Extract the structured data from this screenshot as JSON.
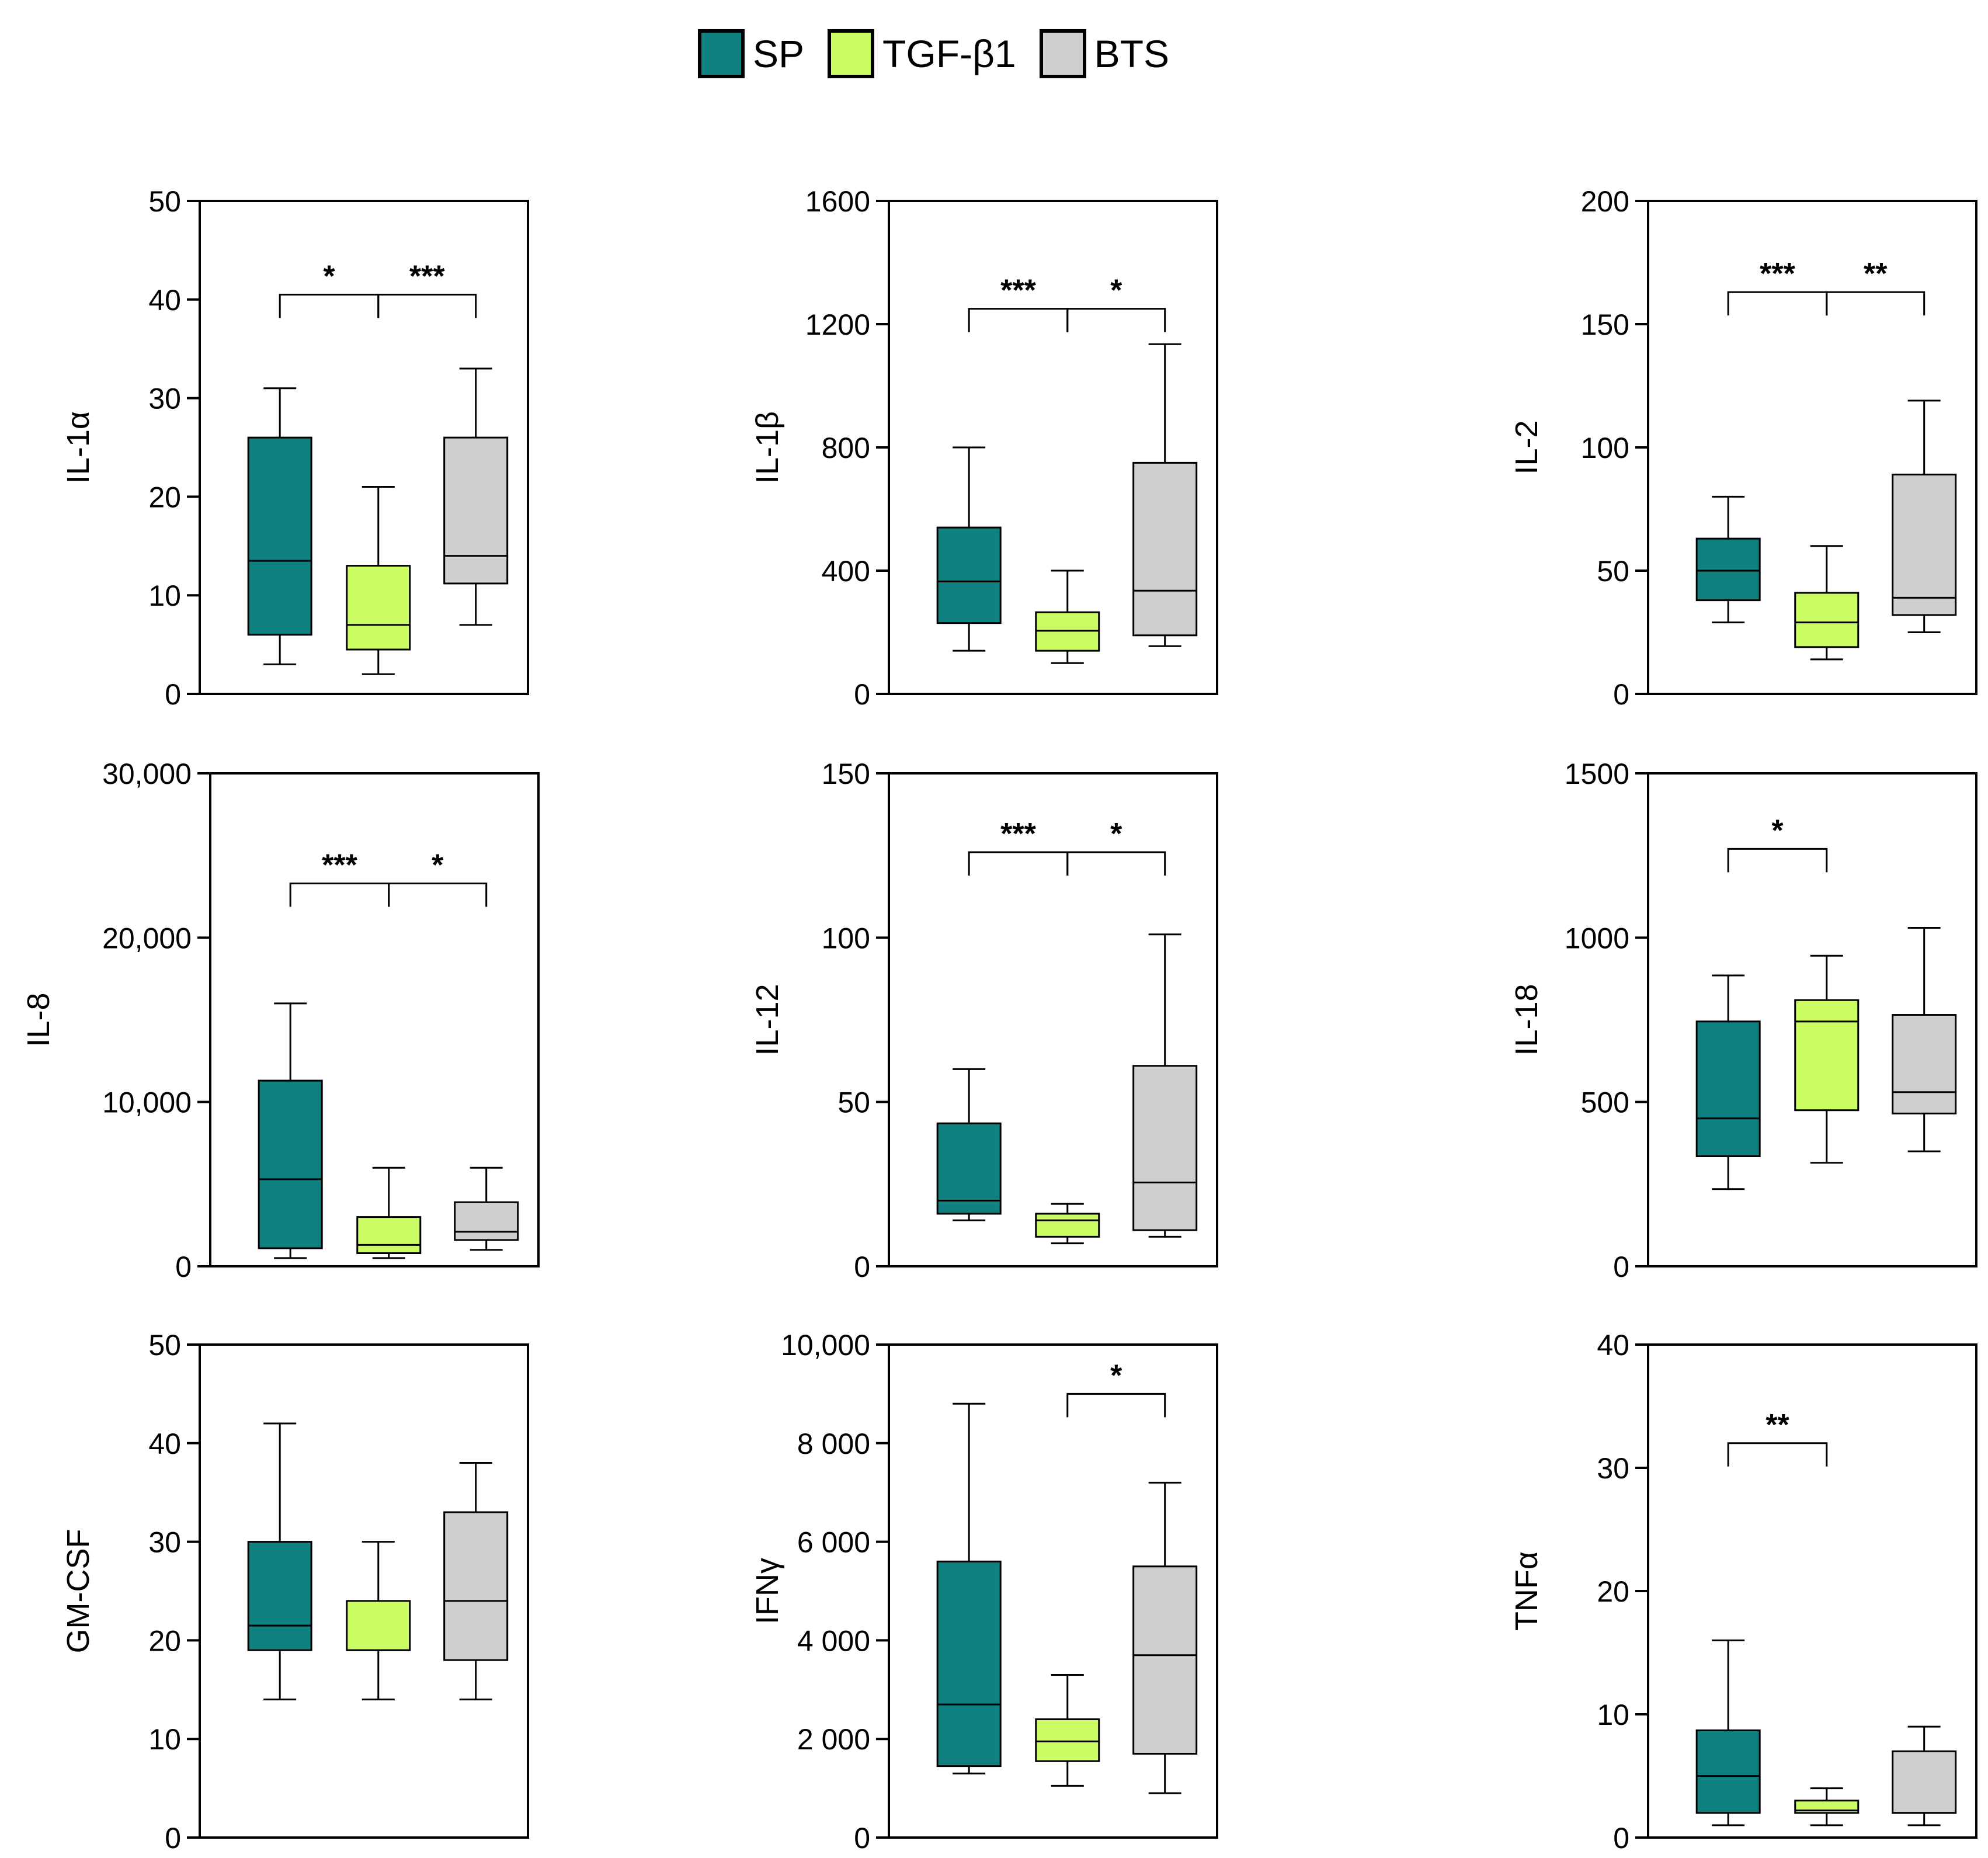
{
  "legend": [
    {
      "label": "SP",
      "color": "#118080"
    },
    {
      "label": "TGF-β1",
      "color": "#ccfc63"
    },
    {
      "label": "BTS",
      "color": "#cfcfcf"
    }
  ],
  "chart_data": [
    {
      "type": "box",
      "ylabel": "IL-1α",
      "ylim": [
        0,
        50
      ],
      "ticks": [
        "0",
        "10",
        "20",
        "30",
        "40",
        "50"
      ],
      "tick_values": [
        0,
        10,
        20,
        30,
        40,
        50
      ],
      "series": [
        {
          "name": "SP",
          "min": 3,
          "q1": 6,
          "median": 13.5,
          "q3": 26,
          "max": 31
        },
        {
          "name": "TGF-β1",
          "min": 2,
          "q1": 4.5,
          "median": 7,
          "q3": 13,
          "max": 21
        },
        {
          "name": "BTS",
          "min": 7,
          "q1": 11.2,
          "median": 14,
          "q3": 26,
          "max": 33
        }
      ],
      "significance": [
        {
          "from": 0,
          "to": 1,
          "label": "*",
          "y": 40.5
        },
        {
          "from": 1,
          "to": 2,
          "label": "***",
          "y": 40.5
        }
      ]
    },
    {
      "type": "box",
      "ylabel": "IL-1β",
      "ylim": [
        0,
        1600
      ],
      "ticks": [
        "0",
        "400",
        "800",
        "1200",
        "1600"
      ],
      "tick_values": [
        0,
        400,
        800,
        1200,
        1600
      ],
      "series": [
        {
          "name": "SP",
          "min": 140,
          "q1": 230,
          "median": 365,
          "q3": 540,
          "max": 800
        },
        {
          "name": "TGF-β1",
          "min": 100,
          "q1": 140,
          "median": 205,
          "q3": 265,
          "max": 400
        },
        {
          "name": "BTS",
          "min": 155,
          "q1": 190,
          "median": 335,
          "q3": 750,
          "max": 1135
        }
      ],
      "significance": [
        {
          "from": 0,
          "to": 1,
          "label": "***",
          "y": 1250
        },
        {
          "from": 1,
          "to": 2,
          "label": "*",
          "y": 1250
        }
      ]
    },
    {
      "type": "box",
      "ylabel": "IL-2",
      "ylim": [
        0,
        200
      ],
      "ticks": [
        "0",
        "50",
        "100",
        "150",
        "200"
      ],
      "tick_values": [
        0,
        50,
        100,
        150,
        200
      ],
      "series": [
        {
          "name": "SP",
          "min": 29,
          "q1": 38,
          "median": 50,
          "q3": 63,
          "max": 80
        },
        {
          "name": "TGF-β1",
          "min": 14,
          "q1": 19,
          "median": 29,
          "q3": 41,
          "max": 60
        },
        {
          "name": "BTS",
          "min": 25,
          "q1": 32,
          "median": 39,
          "q3": 89,
          "max": 119
        }
      ],
      "significance": [
        {
          "from": 0,
          "to": 1,
          "label": "***",
          "y": 163
        },
        {
          "from": 1,
          "to": 2,
          "label": "**",
          "y": 163
        }
      ]
    },
    {
      "type": "box",
      "ylabel": "IL-8",
      "ylim": [
        0,
        30000
      ],
      "ticks": [
        "0",
        "10,000",
        "20,000",
        "30,000"
      ],
      "tick_values": [
        0,
        10000,
        20000,
        30000
      ],
      "series": [
        {
          "name": "SP",
          "min": 500,
          "q1": 1100,
          "median": 5300,
          "q3": 11300,
          "max": 16000
        },
        {
          "name": "TGF-β1",
          "min": 500,
          "q1": 800,
          "median": 1300,
          "q3": 3000,
          "max": 6000
        },
        {
          "name": "BTS",
          "min": 1000,
          "q1": 1600,
          "median": 2100,
          "q3": 3900,
          "max": 6000
        }
      ],
      "significance": [
        {
          "from": 0,
          "to": 1,
          "label": "***",
          "y": 23300
        },
        {
          "from": 1,
          "to": 2,
          "label": "*",
          "y": 23300
        }
      ]
    },
    {
      "type": "box",
      "ylabel": "IL-12",
      "ylim": [
        0,
        150
      ],
      "ticks": [
        "0",
        "50",
        "100",
        "150"
      ],
      "tick_values": [
        0,
        50,
        100,
        150
      ],
      "series": [
        {
          "name": "SP",
          "min": 14,
          "q1": 16,
          "median": 20,
          "q3": 43.5,
          "max": 60
        },
        {
          "name": "TGF-β1",
          "min": 7,
          "q1": 9,
          "median": 14,
          "q3": 16,
          "max": 19
        },
        {
          "name": "BTS",
          "min": 9,
          "q1": 11,
          "median": 25.5,
          "q3": 61,
          "max": 101
        }
      ],
      "significance": [
        {
          "from": 0,
          "to": 1,
          "label": "***",
          "y": 126
        },
        {
          "from": 1,
          "to": 2,
          "label": "*",
          "y": 126
        }
      ]
    },
    {
      "type": "box",
      "ylabel": "IL-18",
      "ylim": [
        0,
        1500
      ],
      "ticks": [
        "0",
        "500",
        "1000",
        "1500"
      ],
      "tick_values": [
        0,
        500,
        1000,
        1500
      ],
      "series": [
        {
          "name": "SP",
          "min": 235,
          "q1": 335,
          "median": 450,
          "q3": 745,
          "max": 885
        },
        {
          "name": "TGF-β1",
          "min": 315,
          "q1": 475,
          "median": 745,
          "q3": 810,
          "max": 945
        },
        {
          "name": "BTS",
          "min": 350,
          "q1": 465,
          "median": 530,
          "q3": 765,
          "max": 1030
        }
      ],
      "significance": [
        {
          "from": 0,
          "to": 1,
          "label": "*",
          "y": 1270
        }
      ]
    },
    {
      "type": "box",
      "ylabel": "GM-CSF",
      "ylim": [
        0,
        50
      ],
      "ticks": [
        "0",
        "10",
        "20",
        "30",
        "40",
        "50"
      ],
      "tick_values": [
        0,
        10,
        20,
        30,
        40,
        50
      ],
      "series": [
        {
          "name": "SP",
          "min": 14,
          "q1": 19,
          "median": 21.5,
          "q3": 30,
          "max": 42
        },
        {
          "name": "TGF-β1",
          "min": 14,
          "q1": 19,
          "median": 19,
          "q3": 24,
          "max": 30
        },
        {
          "name": "BTS",
          "min": 14,
          "q1": 18,
          "median": 24,
          "q3": 33,
          "max": 38
        }
      ],
      "significance": []
    },
    {
      "type": "box",
      "ylabel": "IFNγ",
      "ylim": [
        0,
        10000
      ],
      "ticks": [
        "0",
        "2 000",
        "4 000",
        "6 000",
        "8 000",
        "10,000"
      ],
      "tick_values": [
        0,
        2000,
        4000,
        6000,
        8000,
        10000
      ],
      "series": [
        {
          "name": "SP",
          "min": 1300,
          "q1": 1450,
          "median": 2700,
          "q3": 5600,
          "max": 8800
        },
        {
          "name": "TGF-β1",
          "min": 1050,
          "q1": 1550,
          "median": 1950,
          "q3": 2400,
          "max": 3300
        },
        {
          "name": "BTS",
          "min": 900,
          "q1": 1700,
          "median": 3700,
          "q3": 5500,
          "max": 7200
        }
      ],
      "significance": [
        {
          "from": 1,
          "to": 2,
          "label": "*",
          "y": 9000
        }
      ]
    },
    {
      "type": "box",
      "ylabel": "TNFα",
      "ylim": [
        0,
        40
      ],
      "ticks": [
        "0",
        "10",
        "20",
        "30",
        "40"
      ],
      "tick_values": [
        0,
        10,
        20,
        30,
        40
      ],
      "series": [
        {
          "name": "SP",
          "min": 1,
          "q1": 2,
          "median": 5,
          "q3": 8.7,
          "max": 16
        },
        {
          "name": "TGF-β1",
          "min": 1,
          "q1": 2,
          "median": 2.2,
          "q3": 3,
          "max": 4
        },
        {
          "name": "BTS",
          "min": 1,
          "q1": 2,
          "median": 2,
          "q3": 7,
          "max": 9
        }
      ],
      "significance": [
        {
          "from": 0,
          "to": 1,
          "label": "**",
          "y": 32
        }
      ]
    }
  ]
}
